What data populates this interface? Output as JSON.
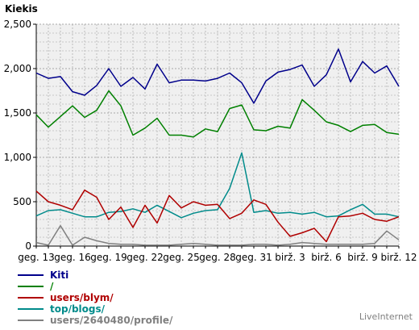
{
  "chart_data": {
    "type": "line",
    "title": "Kiekis",
    "ylim": [
      0,
      2500
    ],
    "yticks": [
      0,
      500,
      1000,
      1500,
      2000,
      2500
    ],
    "ytick_labels": [
      "0",
      "500",
      "1,000",
      "1,500",
      "2,000",
      "2,500"
    ],
    "grid": true,
    "legend_position": "bottom-left",
    "x_labels": [
      {
        "index": 0,
        "label": "geg. 13"
      },
      {
        "index": 3,
        "label": "geg. 16"
      },
      {
        "index": 6,
        "label": "geg. 19"
      },
      {
        "index": 9,
        "label": "geg. 22"
      },
      {
        "index": 12,
        "label": "geg. 25"
      },
      {
        "index": 15,
        "label": "geg. 28"
      },
      {
        "index": 18,
        "label": "geg. 31"
      },
      {
        "index": 21,
        "label": "birž. 3"
      },
      {
        "index": 24,
        "label": "birž. 6"
      },
      {
        "index": 27,
        "label": "birž. 9"
      },
      {
        "index": 30,
        "label": "birž. 12"
      }
    ],
    "series": [
      {
        "name": "Kiti",
        "color": "#00008b",
        "values": [
          1950,
          1890,
          1910,
          1740,
          1700,
          1810,
          2000,
          1800,
          1900,
          1770,
          2050,
          1840,
          1870,
          1870,
          1860,
          1890,
          1950,
          1840,
          1610,
          1860,
          1960,
          1990,
          2040,
          1800,
          1930,
          2220,
          1850,
          2080,
          1950,
          2030,
          1800
        ]
      },
      {
        "name": "/",
        "color": "#008000",
        "values": [
          1480,
          1340,
          1460,
          1580,
          1450,
          1530,
          1750,
          1580,
          1250,
          1330,
          1440,
          1250,
          1250,
          1230,
          1320,
          1290,
          1550,
          1590,
          1310,
          1300,
          1350,
          1330,
          1650,
          1530,
          1400,
          1360,
          1290,
          1360,
          1370,
          1280,
          1260
        ]
      },
      {
        "name": "users/blym/",
        "color": "#b00000",
        "values": [
          620,
          500,
          460,
          410,
          630,
          550,
          300,
          440,
          210,
          460,
          260,
          570,
          430,
          500,
          460,
          470,
          310,
          370,
          520,
          470,
          270,
          110,
          150,
          200,
          50,
          330,
          340,
          370,
          300,
          280,
          330
        ]
      },
      {
        "name": "top/blogs/",
        "color": "#008b8b",
        "values": [
          340,
          400,
          410,
          370,
          330,
          330,
          380,
          390,
          420,
          380,
          460,
          390,
          320,
          370,
          400,
          410,
          650,
          1050,
          380,
          400,
          370,
          380,
          360,
          380,
          330,
          340,
          410,
          470,
          360,
          360,
          330
        ]
      },
      {
        "name": "users/2640480/profile/",
        "color": "#808080",
        "values": [
          40,
          10,
          230,
          10,
          100,
          60,
          30,
          20,
          20,
          10,
          10,
          10,
          20,
          30,
          20,
          10,
          10,
          10,
          20,
          20,
          10,
          20,
          40,
          30,
          20,
          20,
          20,
          20,
          30,
          170,
          70
        ]
      }
    ]
  },
  "branding": "LiveInternet"
}
